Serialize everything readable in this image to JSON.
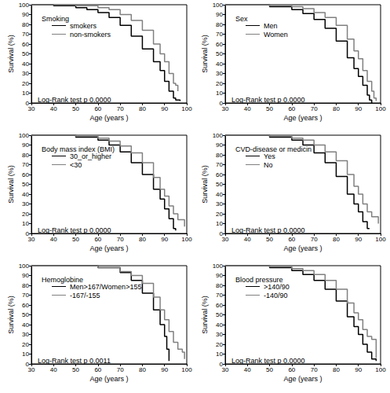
{
  "chart_data": [
    {
      "type": "step",
      "title": "Smoking",
      "annotation": "Log-Rank test p 0.0000",
      "xlabel": "Age (years )",
      "ylabel": "Survival (%)",
      "xlim": [
        30,
        100
      ],
      "xticks": [
        30,
        40,
        50,
        60,
        70,
        80,
        90,
        100
      ],
      "ylim": [
        0,
        100
      ],
      "yticks": [
        0,
        10,
        20,
        30,
        40,
        50,
        60,
        70,
        80,
        90,
        100
      ],
      "grid": false,
      "series": [
        {
          "name": "smokers",
          "color": "#000000",
          "x": [
            30,
            40,
            50,
            55,
            60,
            65,
            70,
            75,
            80,
            85,
            88,
            90,
            92,
            94,
            95,
            97
          ],
          "values": [
            100,
            99,
            97,
            95,
            92,
            87,
            79,
            68,
            55,
            42,
            33,
            22,
            12,
            5,
            3,
            2
          ]
        },
        {
          "name": "non-smokers",
          "color": "#808080",
          "x": [
            30,
            50,
            60,
            65,
            70,
            75,
            80,
            85,
            88,
            90,
            92,
            94,
            95,
            96
          ],
          "values": [
            100,
            99,
            97,
            95,
            90,
            84,
            74,
            60,
            50,
            42,
            30,
            20,
            18,
            12
          ]
        }
      ]
    },
    {
      "type": "step",
      "title": "Sex",
      "annotation": "Log-Rank test p 0.0000",
      "xlabel": "Age (years )",
      "ylabel": "Survival (%)",
      "xlim": [
        30,
        100
      ],
      "xticks": [
        30,
        40,
        50,
        60,
        70,
        80,
        90,
        100
      ],
      "ylim": [
        0,
        100
      ],
      "yticks": [
        0,
        10,
        20,
        30,
        40,
        50,
        60,
        70,
        80,
        90,
        100
      ],
      "grid": false,
      "series": [
        {
          "name": "Men",
          "color": "#000000",
          "x": [
            30,
            50,
            60,
            65,
            70,
            75,
            80,
            85,
            88,
            90,
            92,
            94,
            95,
            96
          ],
          "values": [
            100,
            98,
            95,
            91,
            85,
            76,
            63,
            46,
            35,
            27,
            18,
            8,
            3,
            0
          ]
        },
        {
          "name": "Women",
          "color": "#808080",
          "x": [
            30,
            50,
            60,
            65,
            70,
            75,
            80,
            85,
            88,
            90,
            92,
            94,
            96,
            97,
            98
          ],
          "values": [
            100,
            99,
            98,
            96,
            92,
            87,
            79,
            65,
            53,
            45,
            33,
            22,
            12,
            5,
            2
          ]
        }
      ]
    },
    {
      "type": "step",
      "title": "Body mass index (BMI)",
      "annotation": "Log-Rank test p 0.0000",
      "xlabel": "Age (years )",
      "ylabel": "Survival (%)",
      "xlim": [
        30,
        100
      ],
      "xticks": [
        30,
        40,
        50,
        60,
        70,
        80,
        90,
        100
      ],
      "ylim": [
        0,
        100
      ],
      "yticks": [
        0,
        10,
        20,
        30,
        40,
        50,
        60,
        70,
        80,
        90,
        100
      ],
      "grid": false,
      "series": [
        {
          "name": "30_or_higher",
          "color": "#000000",
          "x": [
            30,
            50,
            60,
            65,
            70,
            75,
            80,
            85,
            88,
            90,
            92,
            94,
            95
          ],
          "values": [
            100,
            98,
            95,
            90,
            83,
            72,
            60,
            45,
            35,
            25,
            15,
            5,
            3
          ]
        },
        {
          "name": "<30",
          "color": "#808080",
          "x": [
            30,
            50,
            60,
            65,
            70,
            75,
            80,
            85,
            88,
            90,
            92,
            94,
            96,
            98,
            99
          ],
          "values": [
            100,
            99,
            97,
            94,
            89,
            82,
            72,
            57,
            45,
            38,
            28,
            20,
            14,
            14,
            7
          ]
        }
      ]
    },
    {
      "type": "step",
      "title": "CVD-disease or medicin",
      "annotation": "Log-Rank test p 0.0000",
      "xlabel": "Age (years )",
      "ylabel": "Survival (%)",
      "xlim": [
        30,
        100
      ],
      "xticks": [
        30,
        40,
        50,
        60,
        70,
        80,
        90,
        100
      ],
      "ylim": [
        0,
        100
      ],
      "yticks": [
        0,
        10,
        20,
        30,
        40,
        50,
        60,
        70,
        80,
        90,
        100
      ],
      "grid": false,
      "series": [
        {
          "name": "Yes",
          "color": "#000000",
          "x": [
            30,
            50,
            60,
            65,
            70,
            75,
            80,
            85,
            88,
            90,
            92,
            94,
            95
          ],
          "values": [
            100,
            98,
            95,
            90,
            82,
            72,
            58,
            40,
            30,
            22,
            12,
            5,
            5
          ]
        },
        {
          "name": "No",
          "color": "#808080",
          "x": [
            30,
            50,
            60,
            65,
            70,
            75,
            80,
            85,
            88,
            90,
            92,
            94,
            96,
            98,
            99
          ],
          "values": [
            100,
            99,
            97,
            95,
            90,
            83,
            74,
            60,
            48,
            40,
            30,
            22,
            17,
            17,
            10
          ]
        }
      ]
    },
    {
      "type": "step",
      "title": "Hemoglobine",
      "annotation": "Log-Rank test p 0.0011",
      "xlabel": "Age (years )",
      "ylabel": "Survival (%)",
      "xlim": [
        30,
        100
      ],
      "xticks": [
        30,
        40,
        50,
        60,
        70,
        80,
        90,
        100
      ],
      "ylim": [
        0,
        100
      ],
      "yticks": [
        0,
        10,
        20,
        30,
        40,
        50,
        60,
        70,
        80,
        90,
        100
      ],
      "grid": false,
      "series": [
        {
          "name": "Men>167/Women>155",
          "color": "#000000",
          "x": [
            30,
            60,
            70,
            75,
            80,
            85,
            88,
            90,
            91,
            92
          ],
          "values": [
            100,
            98,
            93,
            85,
            72,
            55,
            40,
            28,
            15,
            3
          ]
        },
        {
          "name": "-167/-155",
          "color": "#808080",
          "x": [
            30,
            60,
            70,
            75,
            80,
            85,
            88,
            90,
            92,
            94,
            96,
            98,
            99
          ],
          "values": [
            100,
            98,
            94,
            90,
            82,
            68,
            55,
            45,
            33,
            22,
            15,
            12,
            5
          ]
        }
      ]
    },
    {
      "type": "step",
      "title": "Blood pressure",
      "annotation": "Log-Rank test p 0.0000",
      "xlabel": "Age (years )",
      "ylabel": "Survival (%)",
      "xlim": [
        30,
        100
      ],
      "xticks": [
        30,
        40,
        50,
        60,
        70,
        80,
        90,
        100
      ],
      "ylim": [
        0,
        100
      ],
      "yticks": [
        0,
        10,
        20,
        30,
        40,
        50,
        60,
        70,
        80,
        90,
        100
      ],
      "grid": false,
      "series": [
        {
          "name": ">140/90",
          "color": "#000000",
          "x": [
            30,
            50,
            60,
            65,
            70,
            75,
            80,
            85,
            88,
            90,
            92,
            94,
            96,
            98
          ],
          "values": [
            100,
            98,
            95,
            91,
            85,
            76,
            64,
            48,
            38,
            30,
            20,
            12,
            5,
            3
          ]
        },
        {
          "name": "-140/90",
          "color": "#808080",
          "x": [
            30,
            50,
            60,
            65,
            70,
            75,
            80,
            85,
            88,
            90,
            92,
            94,
            96,
            97,
            98
          ],
          "values": [
            100,
            99,
            97,
            95,
            91,
            85,
            76,
            62,
            52,
            45,
            35,
            28,
            25,
            25,
            6
          ]
        }
      ]
    }
  ]
}
